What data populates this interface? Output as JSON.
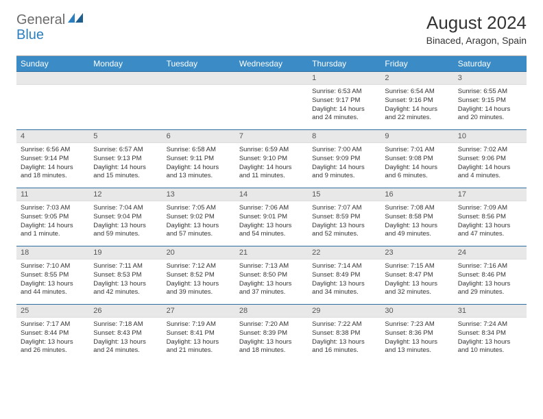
{
  "logo": {
    "text1": "General",
    "text2": "Blue"
  },
  "title": "August 2024",
  "location": "Binaced, Aragon, Spain",
  "colors": {
    "header_bg": "#3b8bc6",
    "header_text": "#ffffff",
    "week_border": "#2a6ba0",
    "daynum_bg": "#e8e8e8",
    "logo_gray": "#6b6b6b",
    "logo_blue": "#2b7fbf"
  },
  "dayNames": [
    "Sunday",
    "Monday",
    "Tuesday",
    "Wednesday",
    "Thursday",
    "Friday",
    "Saturday"
  ],
  "weeks": [
    [
      {
        "n": "",
        "sr": "",
        "ss": "",
        "dl": ""
      },
      {
        "n": "",
        "sr": "",
        "ss": "",
        "dl": ""
      },
      {
        "n": "",
        "sr": "",
        "ss": "",
        "dl": ""
      },
      {
        "n": "",
        "sr": "",
        "ss": "",
        "dl": ""
      },
      {
        "n": "1",
        "sr": "Sunrise: 6:53 AM",
        "ss": "Sunset: 9:17 PM",
        "dl": "Daylight: 14 hours and 24 minutes."
      },
      {
        "n": "2",
        "sr": "Sunrise: 6:54 AM",
        "ss": "Sunset: 9:16 PM",
        "dl": "Daylight: 14 hours and 22 minutes."
      },
      {
        "n": "3",
        "sr": "Sunrise: 6:55 AM",
        "ss": "Sunset: 9:15 PM",
        "dl": "Daylight: 14 hours and 20 minutes."
      }
    ],
    [
      {
        "n": "4",
        "sr": "Sunrise: 6:56 AM",
        "ss": "Sunset: 9:14 PM",
        "dl": "Daylight: 14 hours and 18 minutes."
      },
      {
        "n": "5",
        "sr": "Sunrise: 6:57 AM",
        "ss": "Sunset: 9:13 PM",
        "dl": "Daylight: 14 hours and 15 minutes."
      },
      {
        "n": "6",
        "sr": "Sunrise: 6:58 AM",
        "ss": "Sunset: 9:11 PM",
        "dl": "Daylight: 14 hours and 13 minutes."
      },
      {
        "n": "7",
        "sr": "Sunrise: 6:59 AM",
        "ss": "Sunset: 9:10 PM",
        "dl": "Daylight: 14 hours and 11 minutes."
      },
      {
        "n": "8",
        "sr": "Sunrise: 7:00 AM",
        "ss": "Sunset: 9:09 PM",
        "dl": "Daylight: 14 hours and 9 minutes."
      },
      {
        "n": "9",
        "sr": "Sunrise: 7:01 AM",
        "ss": "Sunset: 9:08 PM",
        "dl": "Daylight: 14 hours and 6 minutes."
      },
      {
        "n": "10",
        "sr": "Sunrise: 7:02 AM",
        "ss": "Sunset: 9:06 PM",
        "dl": "Daylight: 14 hours and 4 minutes."
      }
    ],
    [
      {
        "n": "11",
        "sr": "Sunrise: 7:03 AM",
        "ss": "Sunset: 9:05 PM",
        "dl": "Daylight: 14 hours and 1 minute."
      },
      {
        "n": "12",
        "sr": "Sunrise: 7:04 AM",
        "ss": "Sunset: 9:04 PM",
        "dl": "Daylight: 13 hours and 59 minutes."
      },
      {
        "n": "13",
        "sr": "Sunrise: 7:05 AM",
        "ss": "Sunset: 9:02 PM",
        "dl": "Daylight: 13 hours and 57 minutes."
      },
      {
        "n": "14",
        "sr": "Sunrise: 7:06 AM",
        "ss": "Sunset: 9:01 PM",
        "dl": "Daylight: 13 hours and 54 minutes."
      },
      {
        "n": "15",
        "sr": "Sunrise: 7:07 AM",
        "ss": "Sunset: 8:59 PM",
        "dl": "Daylight: 13 hours and 52 minutes."
      },
      {
        "n": "16",
        "sr": "Sunrise: 7:08 AM",
        "ss": "Sunset: 8:58 PM",
        "dl": "Daylight: 13 hours and 49 minutes."
      },
      {
        "n": "17",
        "sr": "Sunrise: 7:09 AM",
        "ss": "Sunset: 8:56 PM",
        "dl": "Daylight: 13 hours and 47 minutes."
      }
    ],
    [
      {
        "n": "18",
        "sr": "Sunrise: 7:10 AM",
        "ss": "Sunset: 8:55 PM",
        "dl": "Daylight: 13 hours and 44 minutes."
      },
      {
        "n": "19",
        "sr": "Sunrise: 7:11 AM",
        "ss": "Sunset: 8:53 PM",
        "dl": "Daylight: 13 hours and 42 minutes."
      },
      {
        "n": "20",
        "sr": "Sunrise: 7:12 AM",
        "ss": "Sunset: 8:52 PM",
        "dl": "Daylight: 13 hours and 39 minutes."
      },
      {
        "n": "21",
        "sr": "Sunrise: 7:13 AM",
        "ss": "Sunset: 8:50 PM",
        "dl": "Daylight: 13 hours and 37 minutes."
      },
      {
        "n": "22",
        "sr": "Sunrise: 7:14 AM",
        "ss": "Sunset: 8:49 PM",
        "dl": "Daylight: 13 hours and 34 minutes."
      },
      {
        "n": "23",
        "sr": "Sunrise: 7:15 AM",
        "ss": "Sunset: 8:47 PM",
        "dl": "Daylight: 13 hours and 32 minutes."
      },
      {
        "n": "24",
        "sr": "Sunrise: 7:16 AM",
        "ss": "Sunset: 8:46 PM",
        "dl": "Daylight: 13 hours and 29 minutes."
      }
    ],
    [
      {
        "n": "25",
        "sr": "Sunrise: 7:17 AM",
        "ss": "Sunset: 8:44 PM",
        "dl": "Daylight: 13 hours and 26 minutes."
      },
      {
        "n": "26",
        "sr": "Sunrise: 7:18 AM",
        "ss": "Sunset: 8:43 PM",
        "dl": "Daylight: 13 hours and 24 minutes."
      },
      {
        "n": "27",
        "sr": "Sunrise: 7:19 AM",
        "ss": "Sunset: 8:41 PM",
        "dl": "Daylight: 13 hours and 21 minutes."
      },
      {
        "n": "28",
        "sr": "Sunrise: 7:20 AM",
        "ss": "Sunset: 8:39 PM",
        "dl": "Daylight: 13 hours and 18 minutes."
      },
      {
        "n": "29",
        "sr": "Sunrise: 7:22 AM",
        "ss": "Sunset: 8:38 PM",
        "dl": "Daylight: 13 hours and 16 minutes."
      },
      {
        "n": "30",
        "sr": "Sunrise: 7:23 AM",
        "ss": "Sunset: 8:36 PM",
        "dl": "Daylight: 13 hours and 13 minutes."
      },
      {
        "n": "31",
        "sr": "Sunrise: 7:24 AM",
        "ss": "Sunset: 8:34 PM",
        "dl": "Daylight: 13 hours and 10 minutes."
      }
    ]
  ]
}
